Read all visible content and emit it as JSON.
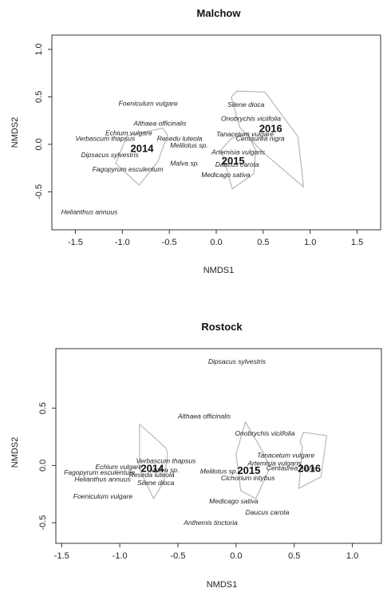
{
  "chart_data": [
    {
      "type": "scatter",
      "title": "Malchow",
      "xlabel": "NMDS1",
      "ylabel": "NMDS2",
      "xlim": [
        -1.75,
        1.75
      ],
      "ylim": [
        -0.9,
        1.15
      ],
      "xticks": [
        -1.5,
        -1.0,
        -0.5,
        0.0,
        0.5,
        1.0,
        1.5
      ],
      "xtick_labels": [
        "-1.5",
        "-1.0",
        "-0.5",
        "0.0",
        "0.5",
        "1.0",
        "1.5"
      ],
      "yticks": [
        -0.5,
        0.0,
        0.5,
        1.0
      ],
      "ytick_labels": [
        "-0.5",
        "0.0",
        "0.5",
        "1.0"
      ],
      "species": [
        {
          "label": "Foeniculum vulgare",
          "x": -1.04,
          "y": 0.43
        },
        {
          "label": "Silene dioca",
          "x": 0.12,
          "y": 0.42
        },
        {
          "label": "Onobrychis viciifolia",
          "x": 0.05,
          "y": 0.27
        },
        {
          "label": "Althaea officinalis",
          "x": -0.88,
          "y": 0.22
        },
        {
          "label": "Tanacetum vulgare",
          "x": 0.0,
          "y": 0.11
        },
        {
          "label": "Echium vulgare",
          "x": -1.18,
          "y": 0.12
        },
        {
          "label": "Resedu luteola",
          "x": -0.63,
          "y": 0.06
        },
        {
          "label": "Centaurea nigra",
          "x": 0.21,
          "y": 0.06
        },
        {
          "label": "Verbascum thapsus",
          "x": -1.5,
          "y": 0.06
        },
        {
          "label": "Melilotus sp.",
          "x": -0.49,
          "y": -0.01
        },
        {
          "label": "Dipsacus sylvestris",
          "x": -1.44,
          "y": -0.11
        },
        {
          "label": "Artemisia vulgaris",
          "x": -0.05,
          "y": -0.08
        },
        {
          "label": "Malva sp.",
          "x": -0.49,
          "y": -0.2
        },
        {
          "label": "Daucus carota",
          "x": -0.01,
          "y": -0.21
        },
        {
          "label": "Fagopyrum esculentum",
          "x": -1.32,
          "y": -0.26
        },
        {
          "label": "Medicago sativa",
          "x": -0.16,
          "y": -0.32
        },
        {
          "label": "Helianthus annuus",
          "x": -1.65,
          "y": -0.71
        }
      ],
      "groups": [
        {
          "label": "2014",
          "x": -0.79,
          "y": -0.04,
          "hull": [
            [
              -1.07,
              -0.2
            ],
            [
              -0.95,
              0.09
            ],
            [
              -0.57,
              0.17
            ],
            [
              -0.52,
              0.1
            ],
            [
              -0.62,
              -0.18
            ],
            [
              -0.82,
              -0.43
            ],
            [
              -0.94,
              -0.32
            ]
          ]
        },
        {
          "label": "2015",
          "x": 0.18,
          "y": -0.17,
          "hull": [
            [
              0.1,
              -0.22
            ],
            [
              0.05,
              -0.06
            ],
            [
              0.16,
              0.06
            ],
            [
              0.33,
              0.12
            ],
            [
              0.42,
              -0.06
            ],
            [
              0.4,
              -0.31
            ],
            [
              0.17,
              -0.47
            ]
          ]
        },
        {
          "label": "2016",
          "x": 0.58,
          "y": 0.17,
          "hull": [
            [
              0.16,
              0.5
            ],
            [
              0.22,
              0.56
            ],
            [
              0.52,
              0.55
            ],
            [
              0.87,
              0.08
            ],
            [
              0.93,
              -0.45
            ],
            [
              0.48,
              -0.07
            ],
            [
              0.25,
              0.18
            ]
          ]
        }
      ]
    },
    {
      "type": "scatter",
      "title": "Rostock",
      "xlabel": "NMDS1",
      "ylabel": "NMDS2",
      "xlim": [
        -1.55,
        1.25
      ],
      "ylim": [
        -0.68,
        1.02
      ],
      "xticks": [
        -1.5,
        -1.0,
        -0.5,
        0.0,
        0.5,
        1.0
      ],
      "xtick_labels": [
        "-1.5",
        "-1.0",
        "-0.5",
        "0.0",
        "0.5",
        "1.0"
      ],
      "yticks": [
        -0.5,
        0.0,
        0.5
      ],
      "ytick_labels": [
        "-0.5",
        "0.0",
        "0.5"
      ],
      "species": [
        {
          "label": "Dipsacus sylvestris",
          "x": -0.24,
          "y": 0.91
        },
        {
          "label": "Althaea officinalis",
          "x": -0.5,
          "y": 0.43
        },
        {
          "label": "Onobrychis viciifolia",
          "x": -0.01,
          "y": 0.28
        },
        {
          "label": "Verbascum thapsus",
          "x": -0.86,
          "y": 0.04
        },
        {
          "label": "Tanacetum vulgare",
          "x": 0.18,
          "y": 0.09
        },
        {
          "label": "Artemisia vulgaris",
          "x": 0.1,
          "y": 0.02
        },
        {
          "label": "Echium vulgare",
          "x": -1.21,
          "y": -0.01
        },
        {
          "label": "Malva sp.",
          "x": -0.74,
          "y": -0.04
        },
        {
          "label": "Melilotus sp.",
          "x": -0.31,
          "y": -0.05
        },
        {
          "label": "Centaurea nigra",
          "x": 0.26,
          "y": -0.02
        },
        {
          "label": "Fagopyrum esculentum",
          "x": -1.48,
          "y": -0.06
        },
        {
          "label": "Reseda luteola",
          "x": -0.92,
          "y": -0.08
        },
        {
          "label": "Helianthus annuus",
          "x": -1.39,
          "y": -0.12
        },
        {
          "label": "Cichorium intybus",
          "x": -0.13,
          "y": -0.11
        },
        {
          "label": "Silene dioca",
          "x": -0.85,
          "y": -0.15
        },
        {
          "label": "Foeniculum vulgare",
          "x": -1.4,
          "y": -0.27
        },
        {
          "label": "Medicago sativa",
          "x": -0.23,
          "y": -0.31
        },
        {
          "label": "Daucus carota",
          "x": 0.08,
          "y": -0.41
        },
        {
          "label": "Anthemis tinctoria",
          "x": -0.45,
          "y": -0.5
        }
      ],
      "groups": [
        {
          "label": "2014",
          "x": -0.72,
          "y": -0.02,
          "hull": [
            [
              -0.83,
              0.36
            ],
            [
              -0.6,
              0.15
            ],
            [
              -0.59,
              0.1
            ],
            [
              -0.62,
              -0.14
            ],
            [
              -0.71,
              -0.29
            ],
            [
              -0.83,
              -0.03
            ]
          ]
        },
        {
          "label": "2015",
          "x": 0.11,
          "y": -0.04,
          "hull": [
            [
              0.04,
              -0.22
            ],
            [
              0.0,
              0.1
            ],
            [
              0.08,
              0.38
            ],
            [
              0.23,
              0.12
            ],
            [
              0.29,
              -0.02
            ],
            [
              0.17,
              -0.29
            ]
          ]
        },
        {
          "label": "2016",
          "x": 0.63,
          "y": -0.02,
          "hull": [
            [
              0.55,
              0.21
            ],
            [
              0.58,
              0.29
            ],
            [
              0.78,
              0.26
            ],
            [
              0.73,
              -0.1
            ],
            [
              0.54,
              -0.2
            ],
            [
              0.57,
              0.16
            ]
          ]
        }
      ]
    }
  ]
}
